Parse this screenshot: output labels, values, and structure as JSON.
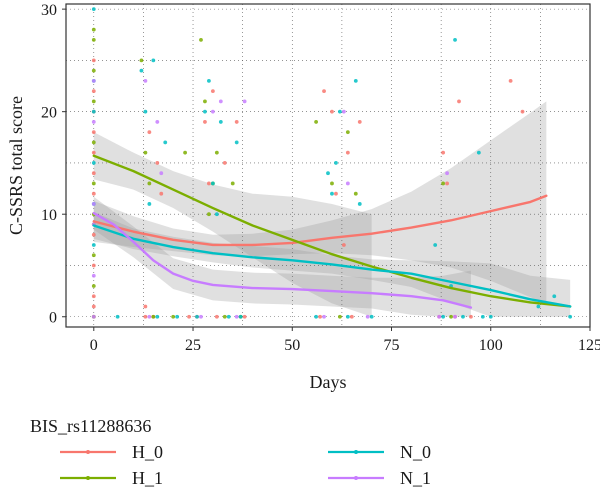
{
  "chart_data": {
    "type": "scatter",
    "title": "",
    "xlabel": "Days",
    "ylabel": "C-SSRS total score",
    "xlim": [
      -7,
      125
    ],
    "ylim": [
      -1,
      30.5
    ],
    "xticks": [
      0,
      25,
      50,
      75,
      100,
      125
    ],
    "yticks": [
      0,
      10,
      20,
      30
    ],
    "grid": "dotted",
    "legend": {
      "title": "BIS_rs11288636",
      "position": "bottom"
    },
    "series": [
      {
        "name": "H_0",
        "color": "#F8766D",
        "points": [
          [
            0,
            0
          ],
          [
            0,
            1
          ],
          [
            0,
            2
          ],
          [
            0,
            5
          ],
          [
            0,
            8
          ],
          [
            0,
            12
          ],
          [
            0,
            14
          ],
          [
            0,
            16
          ],
          [
            0,
            18
          ],
          [
            0,
            20
          ],
          [
            0,
            22
          ],
          [
            0,
            25
          ],
          [
            13,
            0
          ],
          [
            13,
            1
          ],
          [
            14,
            18
          ],
          [
            15,
            0
          ],
          [
            16,
            15
          ],
          [
            17,
            12
          ],
          [
            24,
            0
          ],
          [
            26,
            0
          ],
          [
            28,
            19
          ],
          [
            29,
            13
          ],
          [
            30,
            22
          ],
          [
            31,
            0
          ],
          [
            33,
            15
          ],
          [
            36,
            19
          ],
          [
            38,
            0
          ],
          [
            57,
            0
          ],
          [
            58,
            22
          ],
          [
            60,
            20
          ],
          [
            61,
            12
          ],
          [
            63,
            7
          ],
          [
            64,
            16
          ],
          [
            65,
            0
          ],
          [
            67,
            19
          ],
          [
            87,
            0
          ],
          [
            88,
            16
          ],
          [
            89,
            13
          ],
          [
            91,
            0
          ],
          [
            92,
            21
          ],
          [
            95,
            0
          ],
          [
            105,
            23
          ],
          [
            108,
            20
          ]
        ],
        "smooth": [
          [
            0,
            9.3
          ],
          [
            10,
            8.3
          ],
          [
            20,
            7.5
          ],
          [
            30,
            7.0
          ],
          [
            40,
            7.0
          ],
          [
            50,
            7.2
          ],
          [
            60,
            7.7
          ],
          [
            70,
            8.1
          ],
          [
            80,
            8.7
          ],
          [
            90,
            9.4
          ],
          [
            100,
            10.3
          ],
          [
            110,
            11.2
          ],
          [
            114,
            11.8
          ]
        ],
        "band": [
          [
            0,
            7.3,
            11.3
          ],
          [
            10,
            6.8,
            9.8
          ],
          [
            20,
            6.4,
            8.6
          ],
          [
            30,
            6.0,
            8.0
          ],
          [
            40,
            5.9,
            8.1
          ],
          [
            50,
            6.1,
            8.5
          ],
          [
            60,
            6.2,
            9.4
          ],
          [
            70,
            6.0,
            10.5
          ],
          [
            80,
            5.5,
            12.2
          ],
          [
            90,
            4.8,
            14.5
          ],
          [
            100,
            3.5,
            17.2
          ],
          [
            110,
            1.9,
            19.9
          ],
          [
            114,
            1.3,
            21.0
          ]
        ]
      },
      {
        "name": "H_1",
        "color": "#7CAE00",
        "points": [
          [
            0,
            0
          ],
          [
            0,
            3
          ],
          [
            0,
            6
          ],
          [
            0,
            9
          ],
          [
            0,
            10
          ],
          [
            0,
            13
          ],
          [
            0,
            17
          ],
          [
            0,
            21
          ],
          [
            0,
            24
          ],
          [
            0,
            27
          ],
          [
            0,
            28
          ],
          [
            12,
            25
          ],
          [
            13,
            16
          ],
          [
            14,
            13
          ],
          [
            15,
            0
          ],
          [
            20,
            0
          ],
          [
            23,
            16
          ],
          [
            27,
            27
          ],
          [
            28,
            21
          ],
          [
            29,
            10
          ],
          [
            30,
            13
          ],
          [
            31,
            16
          ],
          [
            33,
            0
          ],
          [
            35,
            13
          ],
          [
            37,
            0
          ],
          [
            56,
            19
          ],
          [
            60,
            13
          ],
          [
            62,
            0
          ],
          [
            64,
            18
          ],
          [
            66,
            12
          ],
          [
            88,
            13
          ],
          [
            90,
            0
          ]
        ],
        "smooth": [
          [
            0,
            15.7
          ],
          [
            10,
            14.2
          ],
          [
            20,
            12.4
          ],
          [
            30,
            10.6
          ],
          [
            40,
            8.9
          ],
          [
            50,
            7.5
          ],
          [
            60,
            6.1
          ],
          [
            70,
            4.9
          ],
          [
            80,
            3.8
          ],
          [
            90,
            2.8
          ],
          [
            100,
            2.0
          ],
          [
            110,
            1.4
          ],
          [
            120,
            1.0
          ]
        ],
        "band": [
          [
            0,
            13.4,
            18.0
          ],
          [
            10,
            12.4,
            16.0
          ],
          [
            20,
            10.6,
            14.2
          ],
          [
            30,
            8.3,
            12.9
          ],
          [
            40,
            5.8,
            12.0
          ],
          [
            50,
            3.3,
            11.7
          ],
          [
            60,
            1.3,
            11.0
          ],
          [
            70,
            0.0,
            10.0
          ]
        ]
      },
      {
        "name": "N_0",
        "color": "#00BFC4",
        "points": [
          [
            0,
            7
          ],
          [
            0,
            11
          ],
          [
            0,
            15
          ],
          [
            0,
            20
          ],
          [
            0,
            23
          ],
          [
            0,
            30
          ],
          [
            6,
            0
          ],
          [
            12,
            24
          ],
          [
            13,
            20
          ],
          [
            14,
            11
          ],
          [
            15,
            25
          ],
          [
            16,
            0
          ],
          [
            18,
            17
          ],
          [
            21,
            0
          ],
          [
            26,
            0
          ],
          [
            28,
            20
          ],
          [
            29,
            23
          ],
          [
            30,
            13
          ],
          [
            31,
            10
          ],
          [
            32,
            19
          ],
          [
            34,
            0
          ],
          [
            36,
            17
          ],
          [
            37,
            0
          ],
          [
            56,
            0
          ],
          [
            59,
            14
          ],
          [
            60,
            12
          ],
          [
            61,
            15
          ],
          [
            62,
            20
          ],
          [
            64,
            0
          ],
          [
            66,
            23
          ],
          [
            67,
            11
          ],
          [
            70,
            0
          ],
          [
            86,
            7
          ],
          [
            88,
            0
          ],
          [
            90,
            3
          ],
          [
            91,
            27
          ],
          [
            93,
            0
          ],
          [
            97,
            16
          ],
          [
            98,
            0
          ],
          [
            100,
            0
          ],
          [
            112,
            1
          ],
          [
            116,
            2
          ],
          [
            120,
            0
          ]
        ],
        "smooth": [
          [
            0,
            8.9
          ],
          [
            10,
            7.6
          ],
          [
            20,
            6.8
          ],
          [
            30,
            6.2
          ],
          [
            40,
            5.8
          ],
          [
            50,
            5.5
          ],
          [
            60,
            5.1
          ],
          [
            70,
            4.6
          ],
          [
            80,
            4.2
          ],
          [
            90,
            3.4
          ],
          [
            100,
            2.6
          ],
          [
            110,
            1.7
          ],
          [
            120,
            1.0
          ]
        ],
        "band": [
          [
            0,
            7.6,
            10.2
          ],
          [
            10,
            6.6,
            8.6
          ],
          [
            20,
            5.9,
            7.8
          ],
          [
            30,
            5.3,
            7.2
          ],
          [
            40,
            4.8,
            6.9
          ],
          [
            50,
            4.5,
            6.6
          ],
          [
            60,
            4.2,
            6.0
          ],
          [
            70,
            3.6,
            5.6
          ],
          [
            80,
            2.9,
            5.5
          ],
          [
            90,
            1.4,
            5.4
          ],
          [
            100,
            0.0,
            5.2
          ],
          [
            110,
            0.0,
            4.0
          ],
          [
            120,
            0.0,
            3.6
          ]
        ]
      },
      {
        "name": "N_1",
        "color": "#C77CFF",
        "points": [
          [
            0,
            0
          ],
          [
            0,
            4
          ],
          [
            0,
            9
          ],
          [
            0,
            11
          ],
          [
            0,
            19
          ],
          [
            0,
            23
          ],
          [
            13,
            23
          ],
          [
            14,
            0
          ],
          [
            16,
            19
          ],
          [
            17,
            14
          ],
          [
            27,
            0
          ],
          [
            30,
            20
          ],
          [
            32,
            21
          ],
          [
            36,
            0
          ],
          [
            38,
            21
          ],
          [
            58,
            0
          ],
          [
            63,
            20
          ],
          [
            64,
            13
          ],
          [
            69,
            0
          ],
          [
            87,
            0
          ],
          [
            89,
            14
          ],
          [
            91,
            0
          ]
        ],
        "smooth": [
          [
            0,
            10.1
          ],
          [
            5,
            9.0
          ],
          [
            10,
            7.3
          ],
          [
            15,
            5.5
          ],
          [
            20,
            4.2
          ],
          [
            25,
            3.5
          ],
          [
            30,
            3.1
          ],
          [
            40,
            2.8
          ],
          [
            50,
            2.7
          ],
          [
            60,
            2.5
          ],
          [
            70,
            2.3
          ],
          [
            80,
            2.0
          ],
          [
            88,
            1.6
          ],
          [
            95,
            0.9
          ]
        ],
        "band": [
          [
            0,
            8.5,
            11.7
          ],
          [
            10,
            5.8,
            8.8
          ],
          [
            20,
            2.7,
            5.7
          ],
          [
            30,
            1.6,
            4.6
          ],
          [
            40,
            1.3,
            4.3
          ],
          [
            50,
            1.2,
            4.2
          ],
          [
            60,
            1.0,
            4.0
          ],
          [
            70,
            0.8,
            3.8
          ],
          [
            80,
            0.2,
            3.8
          ],
          [
            88,
            0.0,
            4.0
          ],
          [
            95,
            0.0,
            4.5
          ]
        ]
      }
    ]
  }
}
